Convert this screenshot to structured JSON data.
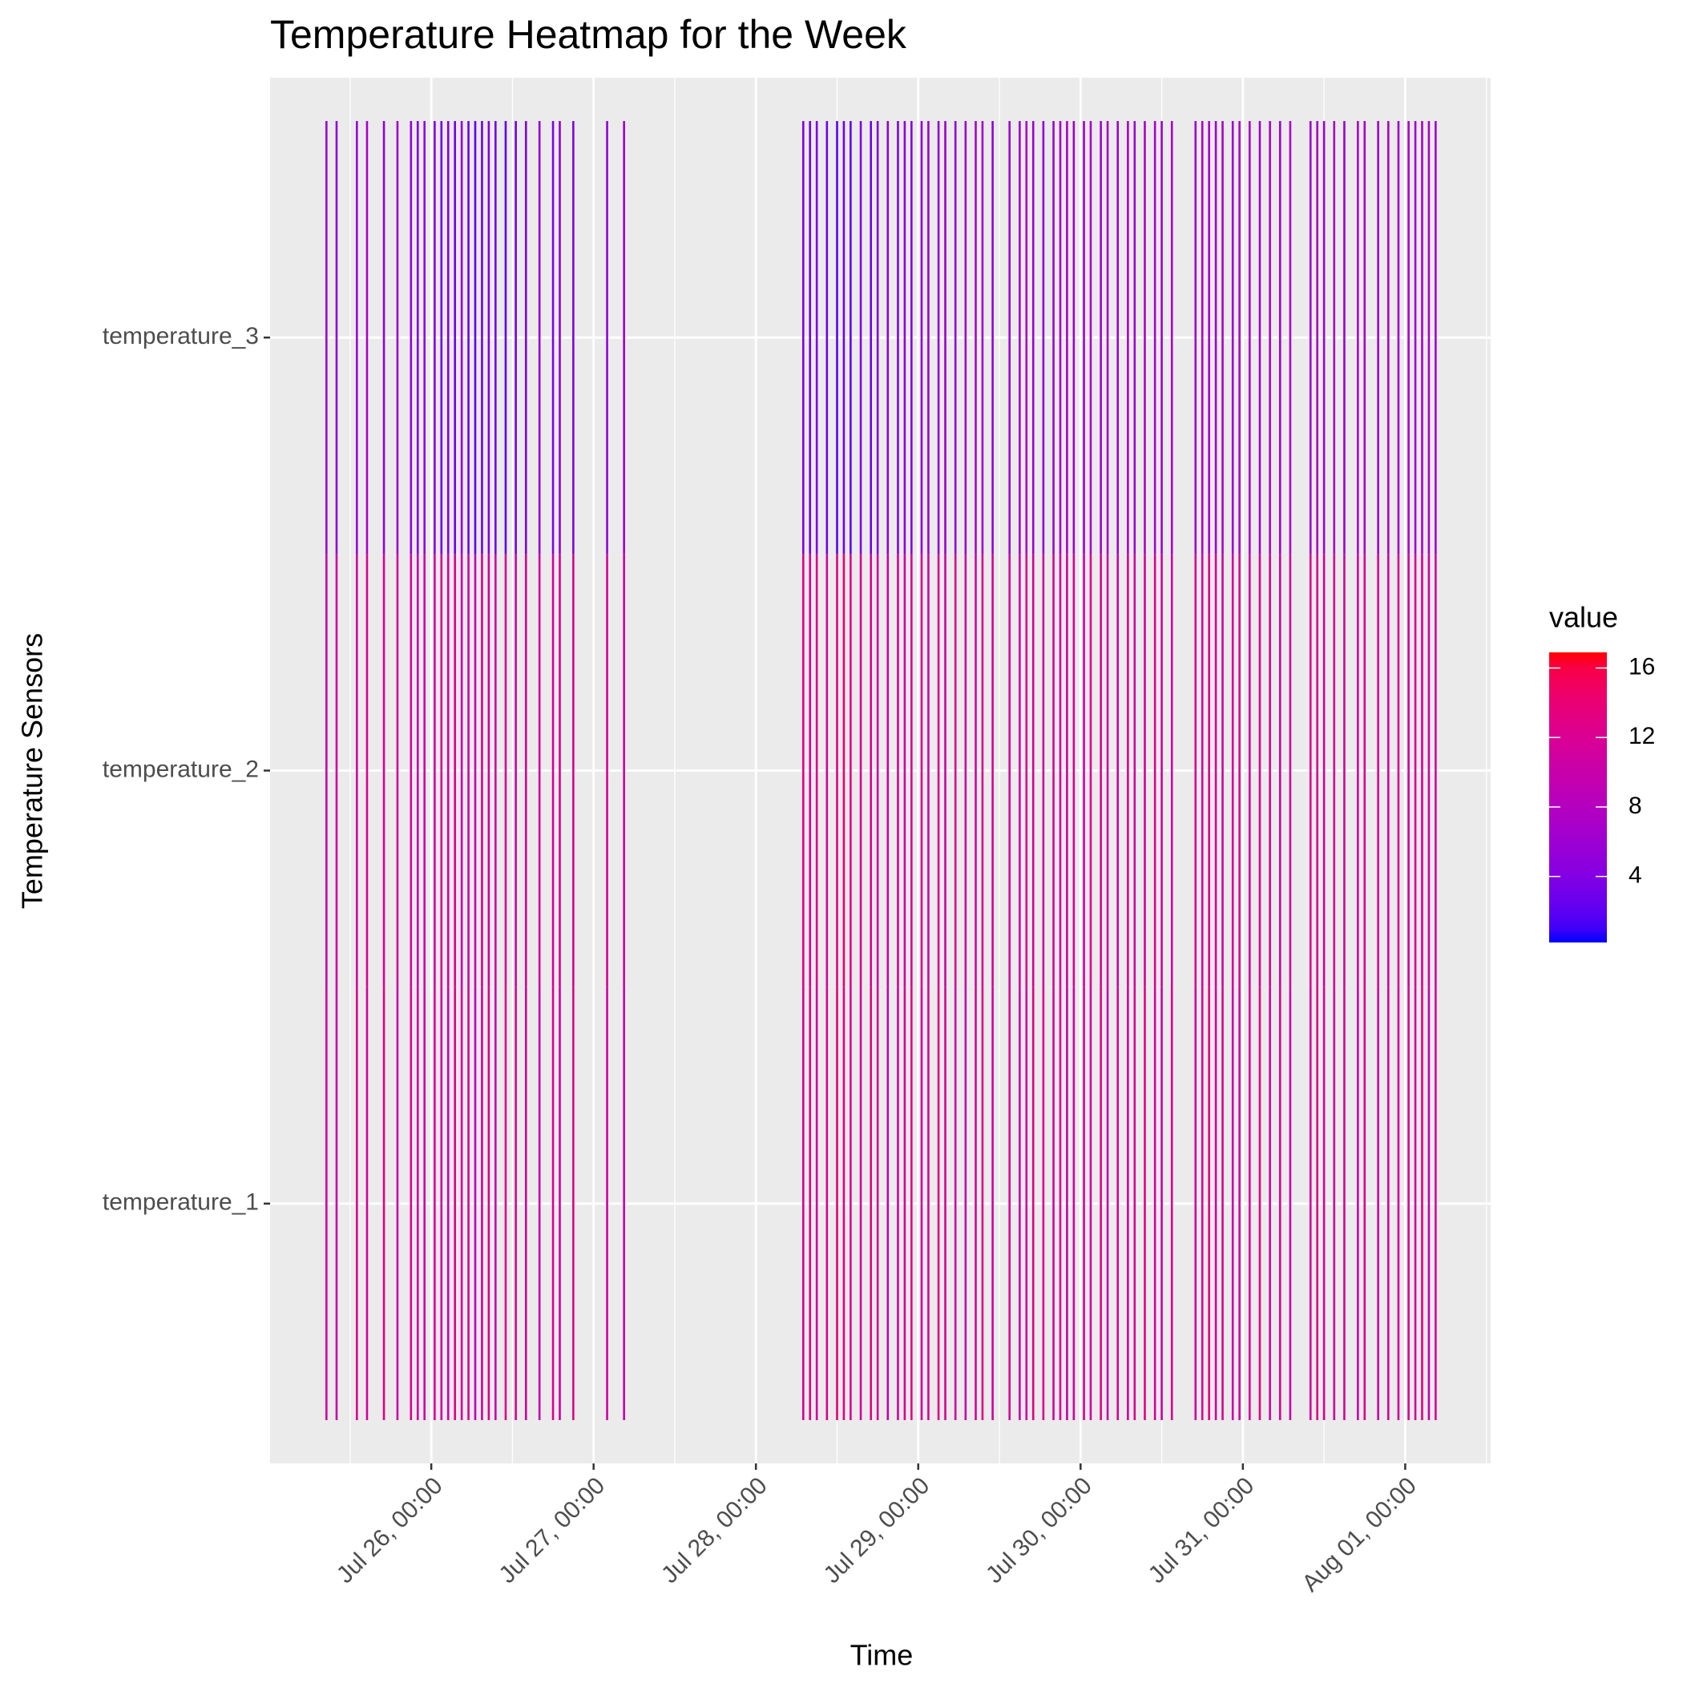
{
  "chart_data": {
    "type": "heatmap",
    "title": "Temperature Heatmap for the Week",
    "x_label": "Time",
    "y_label": "Temperature Sensors",
    "legend_title": "value",
    "low_color": "#0000ff",
    "high_color": "#ff0000",
    "colorlim": [
      0.2,
      16.9
    ],
    "colorticks": [
      4,
      8,
      12,
      16
    ],
    "xlim": [
      "Jul 25, 00:10",
      "Aug 01, 12:38"
    ],
    "xticks": [
      "Jul 26, 00:00",
      "Jul 27, 00:00",
      "Jul 28, 00:00",
      "Jul 29, 00:00",
      "Jul 30, 00:00",
      "Jul 31, 00:00",
      "Aug 01, 00:00"
    ],
    "xminor": [
      "Jul 25, 12:00",
      "Jul 26, 12:00",
      "Jul 27, 12:00",
      "Jul 28, 12:00",
      "Jul 29, 12:00",
      "Jul 30, 12:00",
      "Jul 31, 12:00",
      "Aug 01, 12:00"
    ],
    "grid": true,
    "x": [
      "Jul 25, 08:30",
      "Jul 25, 10:00",
      "Jul 25, 13:00",
      "Jul 25, 14:30",
      "Jul 25, 17:00",
      "Jul 25, 19:00",
      "Jul 25, 21:00",
      "Jul 25, 22:00",
      "Jul 25, 23:00",
      "Jul 26, 00:30",
      "Jul 26, 01:30",
      "Jul 26, 02:30",
      "Jul 26, 03:30",
      "Jul 26, 04:30",
      "Jul 26, 05:30",
      "Jul 26, 06:30",
      "Jul 26, 07:30",
      "Jul 26, 08:30",
      "Jul 26, 09:30",
      "Jul 26, 11:00",
      "Jul 26, 12:30",
      "Jul 26, 14:00",
      "Jul 26, 16:00",
      "Jul 26, 18:00",
      "Jul 26, 19:00",
      "Jul 26, 21:00",
      "Jul 27, 02:00",
      "Jul 27, 04:30",
      "Jul 28, 07:00",
      "Jul 28, 08:00",
      "Jul 28, 09:00",
      "Jul 28, 10:30",
      "Jul 28, 12:00",
      "Jul 28, 13:00",
      "Jul 28, 14:00",
      "Jul 28, 15:30",
      "Jul 28, 17:00",
      "Jul 28, 18:00",
      "Jul 28, 19:30",
      "Jul 28, 21:00",
      "Jul 28, 22:00",
      "Jul 28, 23:00",
      "Jul 29, 00:30",
      "Jul 29, 01:30",
      "Jul 29, 03:00",
      "Jul 29, 04:00",
      "Jul 29, 05:30",
      "Jul 29, 07:00",
      "Jul 29, 08:30",
      "Jul 29, 09:30",
      "Jul 29, 11:00",
      "Jul 29, 13:30",
      "Jul 29, 15:00",
      "Jul 29, 16:00",
      "Jul 29, 17:00",
      "Jul 29, 18:30",
      "Jul 29, 20:00",
      "Jul 29, 21:00",
      "Jul 29, 22:00",
      "Jul 29, 23:00",
      "Jul 30, 00:30",
      "Jul 30, 01:30",
      "Jul 30, 03:00",
      "Jul 30, 04:00",
      "Jul 30, 05:30",
      "Jul 30, 07:00",
      "Jul 30, 08:00",
      "Jul 30, 09:30",
      "Jul 30, 11:00",
      "Jul 30, 12:00",
      "Jul 30, 13:30",
      "Jul 30, 17:00",
      "Jul 30, 18:00",
      "Jul 30, 19:00",
      "Jul 30, 20:00",
      "Jul 30, 21:00",
      "Jul 30, 22:30",
      "Jul 30, 23:30",
      "Jul 31, 01:00",
      "Jul 31, 02:30",
      "Jul 31, 04:00",
      "Jul 31, 05:30",
      "Jul 31, 07:00",
      "Jul 31, 10:00",
      "Jul 31, 11:00",
      "Jul 31, 12:00",
      "Jul 31, 13:30",
      "Jul 31, 15:00",
      "Jul 31, 17:00",
      "Jul 31, 18:00",
      "Jul 31, 20:00",
      "Jul 31, 21:30",
      "Jul 31, 23:00",
      "Aug 01, 00:30",
      "Aug 01, 01:30",
      "Aug 01, 02:30",
      "Aug 01, 03:30",
      "Aug 01, 04:30"
    ],
    "series": [
      {
        "name": "temperature_1",
        "values": [
          11,
          10,
          12,
          11,
          13,
          10,
          12,
          11,
          10,
          12,
          11,
          10,
          13,
          11,
          12,
          9,
          11,
          12,
          10,
          13,
          12,
          11,
          10,
          12,
          11,
          13,
          11,
          10,
          12,
          13,
          11,
          12,
          14,
          13,
          12,
          11,
          13,
          12,
          10,
          11,
          12,
          13,
          11,
          12,
          13,
          12,
          11,
          10,
          12,
          13,
          11,
          12,
          10,
          11,
          13,
          12,
          11,
          12,
          10,
          11,
          12,
          11,
          13,
          10,
          12,
          11,
          12,
          13,
          11,
          10,
          12,
          11,
          12,
          13,
          11,
          12,
          10,
          11,
          12,
          13,
          11,
          12,
          10,
          11,
          13,
          12,
          11,
          12,
          10,
          13,
          11,
          12,
          11,
          12,
          11,
          13,
          10,
          12
        ]
      },
      {
        "name": "temperature_2",
        "values": [
          10,
          11,
          11,
          12,
          12,
          11,
          11,
          10,
          11,
          11,
          12,
          11,
          12,
          10,
          11,
          10,
          12,
          11,
          11,
          12,
          11,
          12,
          11,
          11,
          12,
          12,
          12,
          11,
          13,
          12,
          12,
          11,
          13,
          14,
          13,
          12,
          12,
          11,
          11,
          12,
          11,
          12,
          12,
          11,
          12,
          11,
          12,
          11,
          11,
          12,
          12,
          11,
          11,
          12,
          12,
          11,
          12,
          11,
          11,
          12,
          11,
          12,
          12,
          11,
          11,
          12,
          11,
          12,
          12,
          11,
          11,
          12,
          11,
          12,
          12,
          11,
          11,
          12,
          11,
          12,
          12,
          11,
          11,
          12,
          12,
          11,
          12,
          11,
          11,
          12,
          12,
          11,
          12,
          11,
          12,
          12,
          11,
          11
        ]
      },
      {
        "name": "temperature_3",
        "values": [
          6,
          5,
          6,
          7,
          5,
          6,
          5,
          4,
          5,
          4,
          3,
          4,
          3,
          5,
          3,
          2,
          3,
          4,
          3,
          2,
          3,
          4,
          5,
          4,
          5,
          4,
          5,
          6,
          4,
          3,
          4,
          3,
          2,
          3,
          2,
          4,
          3,
          4,
          5,
          4,
          5,
          4,
          5,
          6,
          5,
          6,
          5,
          6,
          7,
          6,
          5,
          6,
          6,
          7,
          6,
          5,
          6,
          6,
          7,
          6,
          6,
          7,
          6,
          7,
          6,
          7,
          6,
          7,
          7,
          6,
          7,
          6,
          7,
          7,
          6,
          7,
          6,
          7,
          7,
          6,
          7,
          6,
          7,
          6,
          7,
          6,
          7,
          6,
          7,
          7,
          6,
          7,
          6,
          7,
          6,
          7,
          7,
          6
        ]
      }
    ]
  }
}
